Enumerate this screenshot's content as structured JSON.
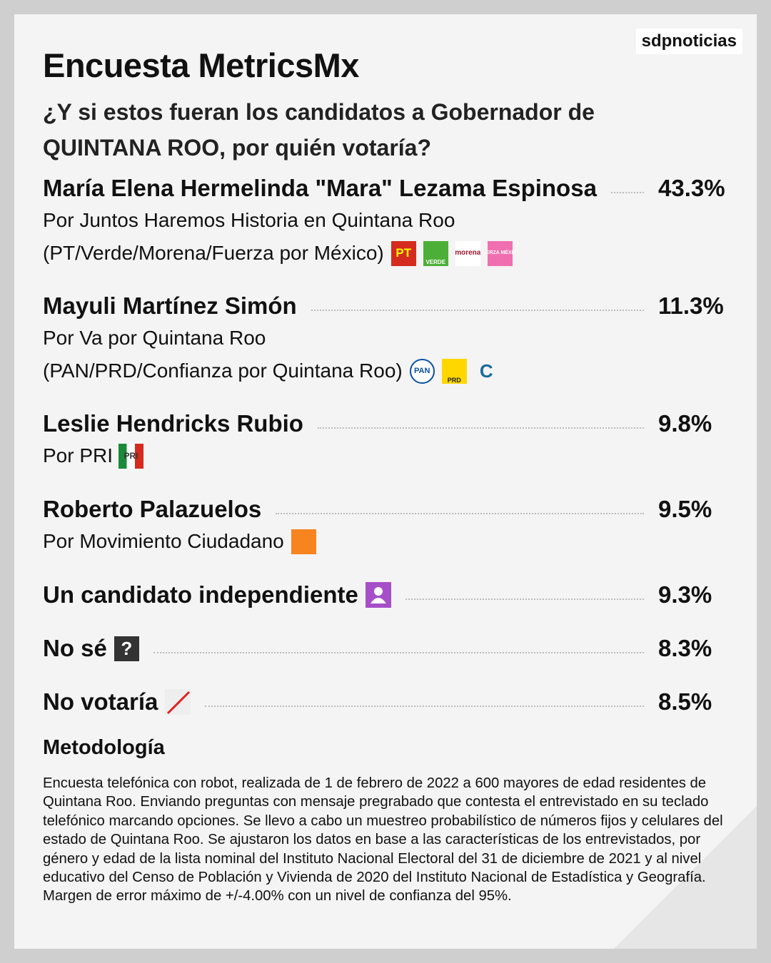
{
  "brand": "sdpnoticias",
  "title": "Encuesta MetricsMx",
  "question": "¿Y si estos fueran los candidatos a Gobernador de QUINTANA ROO, por quién votaría?",
  "candidates": [
    {
      "name": "María Elena Hermelinda \"Mara\" Lezama Espinosa",
      "percent": "43.3%",
      "lines": [
        "Por Juntos Haremos Historia en Quintana Roo",
        "(PT/Verde/Morena/Fuerza por México)"
      ],
      "logos": [
        "PT",
        "VERDE",
        "morena",
        "FUERZA MÉXICO"
      ]
    },
    {
      "name": "Mayuli Martínez Simón",
      "percent": "11.3%",
      "lines": [
        "Por Va por Quintana Roo",
        "(PAN/PRD/Confianza por Quintana Roo)"
      ],
      "logos": [
        "PAN",
        "PRD",
        "C"
      ]
    },
    {
      "name": "Leslie Hendricks Rubio",
      "percent": "9.8%",
      "lines": [
        "Por PRI"
      ],
      "logos": [
        "PRI"
      ]
    },
    {
      "name": "Roberto Palazuelos",
      "percent": "9.5%",
      "lines": [
        "Por Movimiento Ciudadano"
      ]
    },
    {
      "name": "Un candidato independiente",
      "percent": "9.3%"
    },
    {
      "name": "No sé",
      "percent": "8.3%",
      "icon": "?"
    },
    {
      "name": "No votaría",
      "percent": "8.5%"
    }
  ],
  "methodology": {
    "heading": "Metodología",
    "text": "Encuesta telefónica con robot, realizada de 1 de febrero de 2022 a 600 mayores de edad residentes de Quintana Roo. Enviando preguntas con mensaje pregrabado que contesta el entrevistado en su teclado telefónico marcando opciones. Se llevo a cabo un muestreo probabilístico de números fijos y celulares del estado de Quintana Roo. Se ajustaron los datos en base a las características de los entrevistados, por género y edad de la lista nominal del Instituto Nacional Electoral del 31 de diciembre de 2021 y al nivel educativo del Censo de Población y Vivienda de 2020 del Instituto Nacional de Estadística y Geografía. Margen de error máximo de +/-4.00% con un nivel de confianza del 95%."
  }
}
